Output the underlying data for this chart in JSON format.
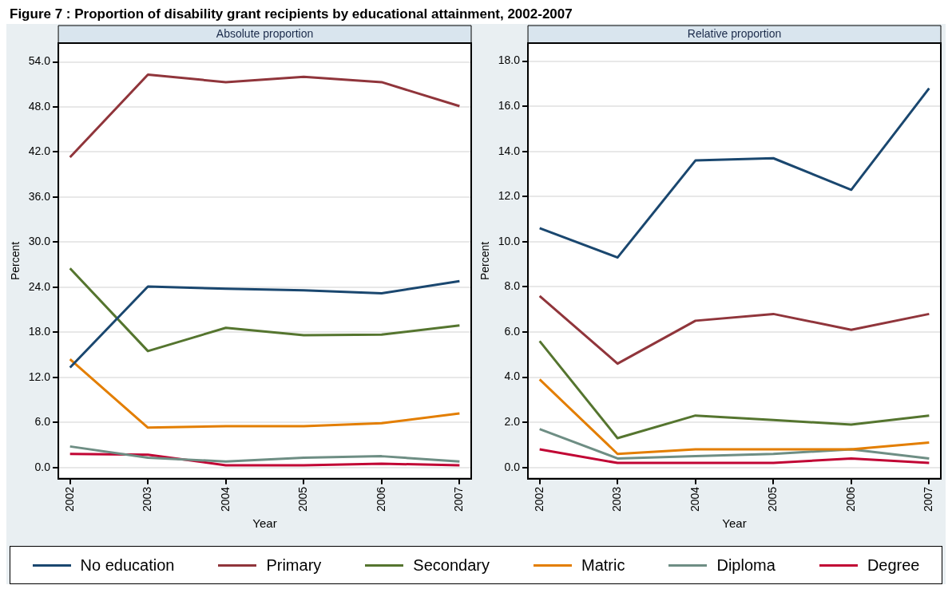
{
  "chart_data": [
    {
      "type": "line",
      "title": "Absolute proportion",
      "annotations": [
        "Figure 7 : Proportion of disability grant recipients by educational attainment, 2002-2007"
      ],
      "xlabel": "Year",
      "ylabel": "Percent",
      "x": [
        2002,
        2003,
        2004,
        2005,
        2006,
        2007
      ],
      "xlim": [
        2001.85,
        2007.15
      ],
      "xticks": [
        2002,
        2003,
        2004,
        2005,
        2006,
        2007
      ],
      "ylim": [
        -1.5,
        56.5
      ],
      "yticks": [
        {
          "value": 0,
          "label": "0.0"
        },
        {
          "value": 6,
          "label": "6.0"
        },
        {
          "value": 12,
          "label": "12.0"
        },
        {
          "value": 18,
          "label": "18.0"
        },
        {
          "value": 24,
          "label": "24.0"
        },
        {
          "value": 30,
          "label": "30.0"
        },
        {
          "value": 36,
          "label": "36.0"
        },
        {
          "value": 42,
          "label": "42.0"
        },
        {
          "value": 48,
          "label": "48.0"
        },
        {
          "value": 54,
          "label": "54.0"
        }
      ],
      "grid": "y",
      "legend": "bottom",
      "series": [
        {
          "name": "No education",
          "color": "#1a476f",
          "values": [
            13.3,
            24.1,
            23.8,
            23.6,
            23.2,
            24.8
          ]
        },
        {
          "name": "Primary",
          "color": "#90353b",
          "values": [
            41.3,
            52.3,
            51.3,
            52.0,
            51.3,
            48.1
          ]
        },
        {
          "name": "Secondary",
          "color": "#55752f",
          "values": [
            26.5,
            15.5,
            18.6,
            17.6,
            17.7,
            18.9
          ]
        },
        {
          "name": "Matric",
          "color": "#e37e00",
          "values": [
            14.4,
            5.3,
            5.5,
            5.5,
            5.9,
            7.2
          ]
        },
        {
          "name": "Diploma",
          "color": "#6e8e84",
          "values": [
            2.8,
            1.3,
            0.8,
            1.3,
            1.5,
            0.8
          ]
        },
        {
          "name": "Degree",
          "color": "#c10534",
          "values": [
            1.8,
            1.7,
            0.3,
            0.3,
            0.5,
            0.3
          ]
        }
      ]
    },
    {
      "type": "line",
      "title": "Relative proportion",
      "xlabel": "Year",
      "ylabel": "Percent",
      "x": [
        2002,
        2003,
        2004,
        2005,
        2006,
        2007
      ],
      "xlim": [
        2001.85,
        2007.15
      ],
      "xticks": [
        2002,
        2003,
        2004,
        2005,
        2006,
        2007
      ],
      "ylim": [
        -0.5,
        18.8
      ],
      "yticks": [
        {
          "value": 0,
          "label": "0.0"
        },
        {
          "value": 2,
          "label": "2.0"
        },
        {
          "value": 4,
          "label": "4.0"
        },
        {
          "value": 6,
          "label": "6.0"
        },
        {
          "value": 8,
          "label": "8.0"
        },
        {
          "value": 10,
          "label": "10.0"
        },
        {
          "value": 12,
          "label": "12.0"
        },
        {
          "value": 14,
          "label": "14.0"
        },
        {
          "value": 16,
          "label": "16.0"
        },
        {
          "value": 18,
          "label": "18.0"
        }
      ],
      "grid": "y",
      "series": [
        {
          "color": "#1a476f",
          "values": [
            10.6,
            9.3,
            13.6,
            13.7,
            12.3,
            16.8
          ]
        },
        {
          "color": "#90353b",
          "values": [
            7.6,
            4.6,
            6.5,
            6.8,
            6.1,
            6.8
          ]
        },
        {
          "color": "#55752f",
          "values": [
            5.6,
            1.3,
            2.3,
            2.1,
            1.9,
            2.3
          ]
        },
        {
          "color": "#e37e00",
          "values": [
            3.9,
            0.6,
            0.8,
            0.8,
            0.8,
            1.1
          ]
        },
        {
          "color": "#6e8e84",
          "values": [
            1.7,
            0.4,
            0.5,
            0.6,
            0.8,
            0.4
          ]
        },
        {
          "color": "#c10534",
          "values": [
            0.8,
            0.2,
            0.2,
            0.2,
            0.4,
            0.2
          ]
        }
      ]
    }
  ]
}
